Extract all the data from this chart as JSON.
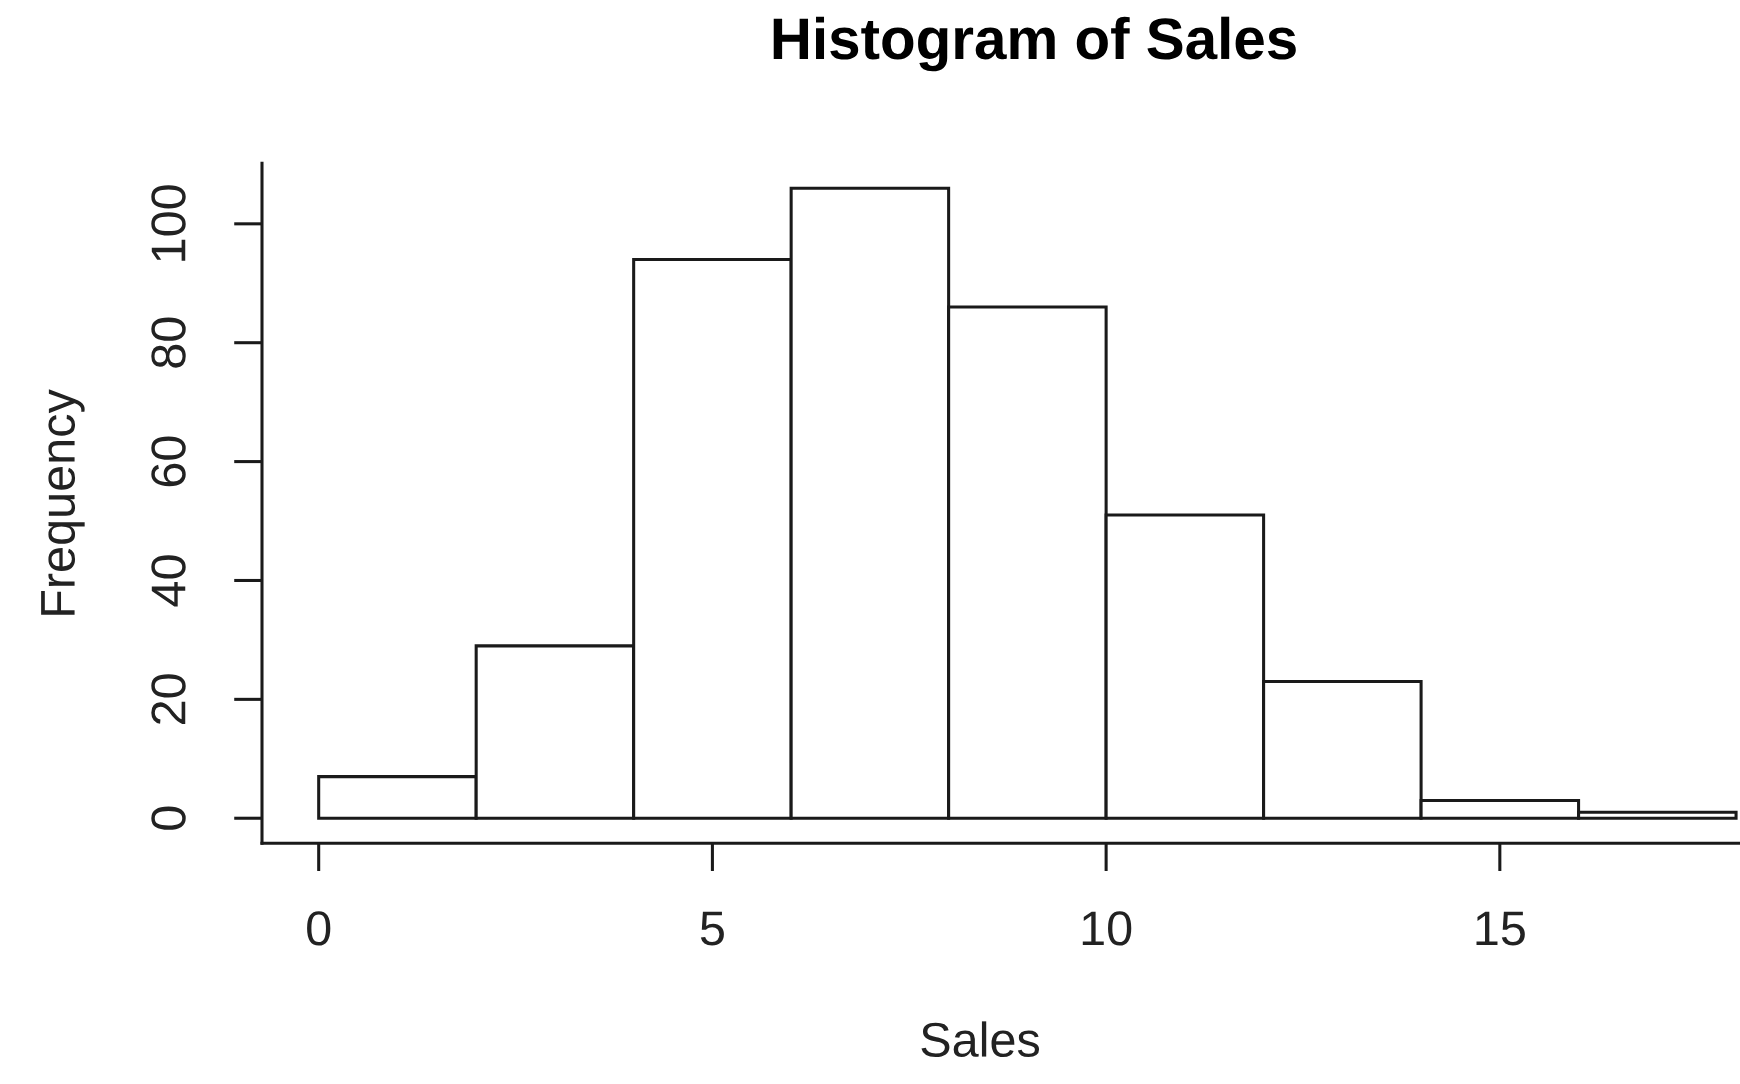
{
  "chart_data": {
    "type": "histogram",
    "title": "Histogram of Sales",
    "xlabel": "Sales",
    "ylabel": "Frequency",
    "bins": [
      0,
      2,
      4,
      6,
      8,
      10,
      12,
      14,
      16,
      18
    ],
    "values": [
      7,
      29,
      94,
      106,
      86,
      51,
      23,
      3,
      1
    ],
    "color": "#ffffff",
    "xlim": [
      -0.72,
      18.05
    ],
    "ylim": [
      -4.2,
      110.2
    ],
    "xticks": [
      0,
      5,
      10,
      15
    ],
    "yticks": [
      0,
      20,
      40,
      60,
      80,
      100
    ],
    "grid": false
  }
}
